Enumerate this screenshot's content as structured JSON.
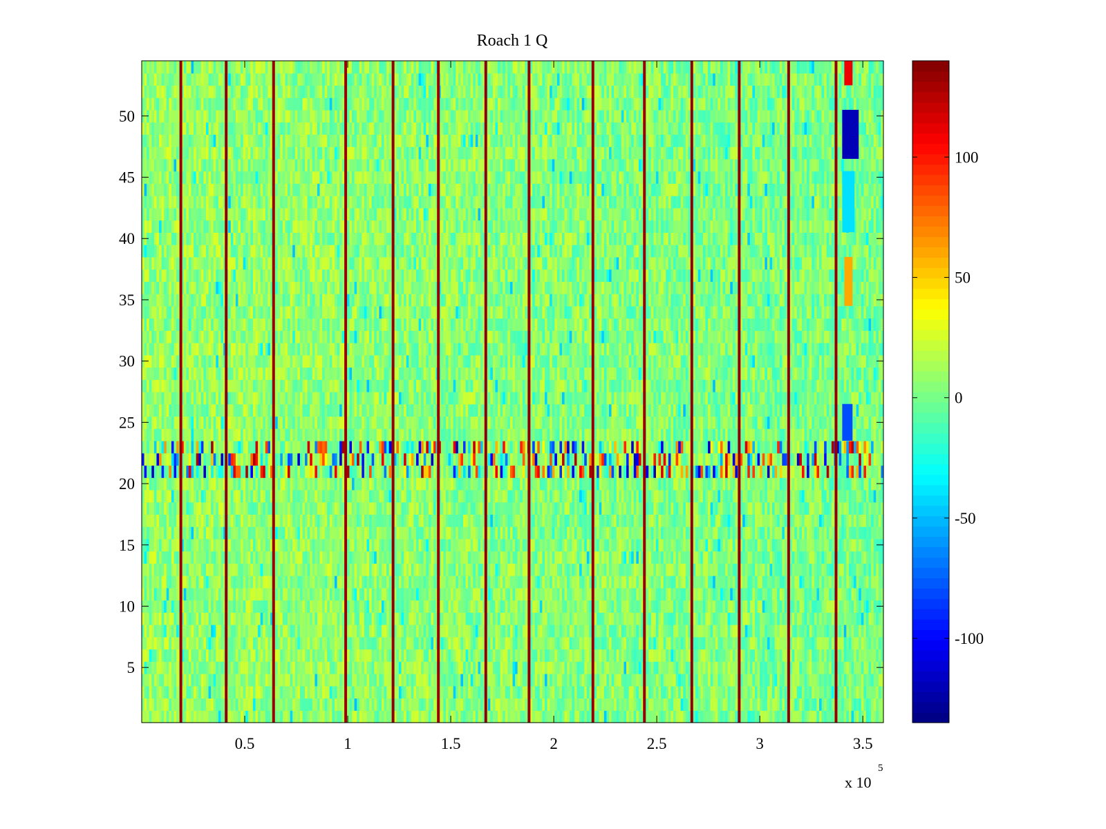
{
  "chart_data": {
    "type": "heatmap",
    "title": "Roach 1 Q",
    "xlabel": "",
    "ylabel": "",
    "x_exponent_label": "x 10",
    "x_exponent_power": "5",
    "xlim": [
      0,
      3.6
    ],
    "ylim": [
      0.5,
      54.5
    ],
    "x_ticks": [
      0.5,
      1,
      1.5,
      2,
      2.5,
      3,
      3.5
    ],
    "x_tick_labels": [
      "0.5",
      "1",
      "1.5",
      "2",
      "2.5",
      "3",
      "3.5"
    ],
    "y_ticks": [
      5,
      10,
      15,
      20,
      25,
      30,
      35,
      40,
      45,
      50
    ],
    "y_tick_labels": [
      "5",
      "10",
      "15",
      "20",
      "25",
      "30",
      "35",
      "40",
      "45",
      "50"
    ],
    "rows": 54,
    "colorbar": {
      "colormap": "jet",
      "clim": [
        -135,
        140
      ],
      "ticks": [
        -100,
        -50,
        0,
        50,
        100
      ],
      "tick_labels": [
        "-100",
        "-50",
        "0",
        "50",
        "100"
      ]
    },
    "background_value_range": [
      -15,
      25
    ],
    "red_vertical_stripes_x": [
      0.19,
      0.41,
      0.64,
      0.99,
      1.22,
      1.44,
      1.67,
      1.88,
      2.19,
      2.44,
      2.67,
      2.9,
      3.14,
      3.37
    ],
    "high_variance_rows": [
      21,
      22,
      23
    ],
    "high_variance_value_range": [
      -120,
      130
    ],
    "anomaly_blocks": [
      {
        "x": [
          3.41,
          3.45
        ],
        "y": [
          53,
          54
        ],
        "value": 110
      },
      {
        "x": [
          3.4,
          3.48
        ],
        "y": [
          47,
          50
        ],
        "value": -120
      },
      {
        "x": [
          3.4,
          3.46
        ],
        "y": [
          41,
          45
        ],
        "value": -40
      },
      {
        "x": [
          3.4,
          3.45
        ],
        "y": [
          24,
          26
        ],
        "value": -80
      },
      {
        "x": [
          3.41,
          3.45
        ],
        "y": [
          35,
          38
        ],
        "value": 60
      }
    ],
    "grid": false,
    "legend": "none"
  }
}
